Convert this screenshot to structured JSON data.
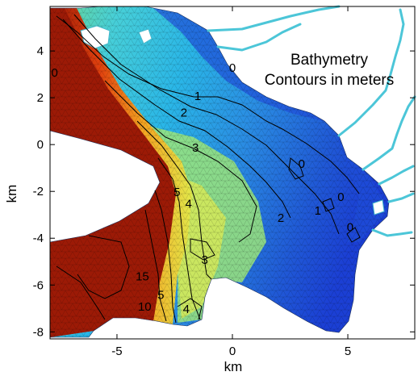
{
  "chart_data": {
    "type": "heatmap",
    "title": "Bathymetry",
    "subtitle": "Contours in meters",
    "xlabel": "km",
    "ylabel": "km",
    "xlim": [
      -7.9,
      7.9
    ],
    "ylim": [
      -8.3,
      5.9
    ],
    "xticks": [
      -5,
      0,
      5
    ],
    "yticks": [
      4,
      2,
      0,
      -2,
      -4,
      -6,
      -8
    ],
    "contour_labels": [
      {
        "text": "0",
        "x": -7.7,
        "y": 2.9
      },
      {
        "text": "0",
        "x": 0.0,
        "y": 3.1
      },
      {
        "text": "1",
        "x": -1.5,
        "y": 1.9
      },
      {
        "text": "2",
        "x": -2.1,
        "y": 1.2
      },
      {
        "text": "3",
        "x": -1.6,
        "y": -0.3
      },
      {
        "text": "5",
        "x": -2.4,
        "y": -2.2
      },
      {
        "text": "4",
        "x": -1.9,
        "y": -2.7
      },
      {
        "text": "0",
        "x": 3.0,
        "y": -1.0
      },
      {
        "text": "0",
        "x": 4.7,
        "y": -2.4
      },
      {
        "text": "1",
        "x": 3.7,
        "y": -3.0
      },
      {
        "text": "2",
        "x": 2.1,
        "y": -3.3
      },
      {
        "text": "0",
        "x": 5.1,
        "y": -3.7
      },
      {
        "text": "3",
        "x": -1.2,
        "y": -5.1
      },
      {
        "text": "15",
        "x": -3.9,
        "y": -5.8
      },
      {
        "text": "5",
        "x": -3.1,
        "y": -6.6
      },
      {
        "text": "10",
        "x": -3.8,
        "y": -7.1
      },
      {
        "text": "4",
        "x": -2.0,
        "y": -7.2
      }
    ],
    "colormap": [
      "#1b3fd4",
      "#1e9be6",
      "#34d4e8",
      "#a8ec72",
      "#e2e84a",
      "#f5a321",
      "#e0400e",
      "#9c1a06"
    ]
  }
}
